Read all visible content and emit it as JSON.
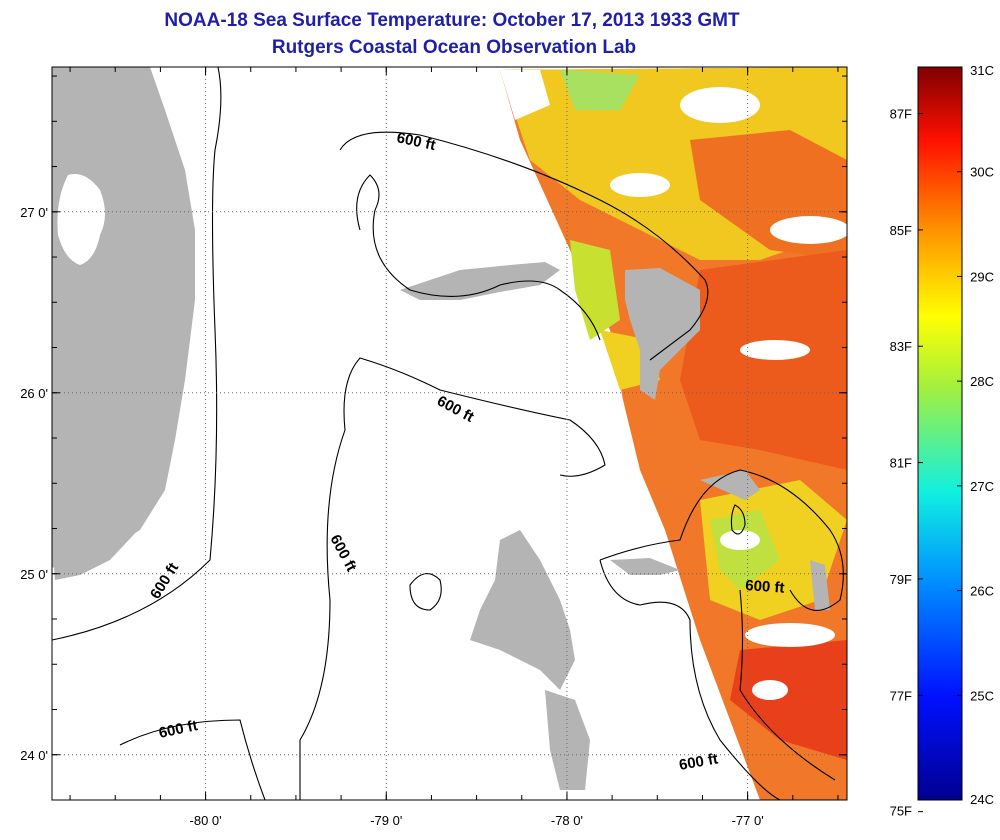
{
  "title": {
    "line1": "NOAA-18 Sea Surface Temperature:  October 17, 2013 1933 GMT",
    "line2": "Rutgers Coastal Ocean Observation Lab"
  },
  "axes": {
    "x_ticks": [
      {
        "value": -80,
        "label": "-80 0'"
      },
      {
        "value": -79,
        "label": "-79 0'"
      },
      {
        "value": -78,
        "label": "-78 0'"
      },
      {
        "value": -77,
        "label": "-77 0'"
      }
    ],
    "y_ticks": [
      {
        "value": 27,
        "label": "27 0'"
      },
      {
        "value": 26,
        "label": "26 0'"
      },
      {
        "value": 25,
        "label": "25 0'"
      },
      {
        "value": 24,
        "label": "24 0'"
      }
    ],
    "lon_range": [
      -80.85,
      -76.45
    ],
    "lat_range": [
      23.75,
      27.8
    ]
  },
  "contour_labels": [
    "600 ft",
    "600 ft",
    "600 ft",
    "600 ft",
    "600 ft",
    "600 ft",
    "600 ft"
  ],
  "colorbar": {
    "celsius": [
      "31C",
      "30C",
      "29C",
      "28C",
      "27C",
      "26C",
      "25C",
      "24C"
    ],
    "fahrenheit": [
      "87F",
      "85F",
      "83F",
      "81F",
      "79F",
      "77F",
      "75F"
    ],
    "range_c": [
      24,
      31
    ]
  },
  "colors": {
    "land": "#b4b4b4",
    "title": "#1f1fa8",
    "warm": "#f06a1e",
    "yellow": "#f0e020"
  }
}
